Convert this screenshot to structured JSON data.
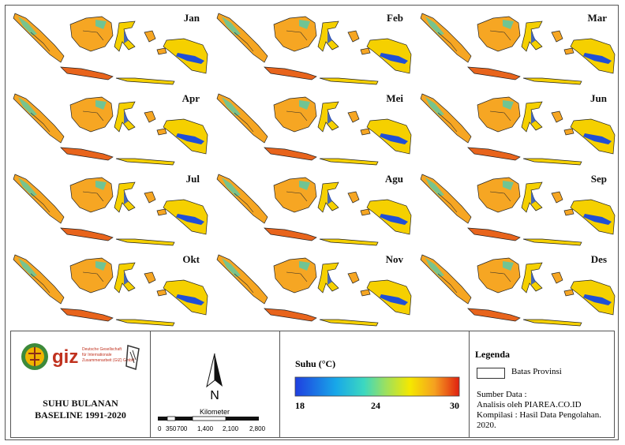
{
  "months": [
    "Jan",
    "Feb",
    "Mar",
    "Apr",
    "Mei",
    "Jun",
    "Jul",
    "Agu",
    "Sep",
    "Okt",
    "Nov",
    "Des"
  ],
  "title": {
    "line1": "SUHU BULANAN",
    "line2": "BASELINE 1991-2020"
  },
  "logo": {
    "brand": "giz",
    "sub1": "Deutsche Gesellschaft",
    "sub2": "für Internationale",
    "sub3": "Zusammenarbeit (GIZ) GmbH"
  },
  "north": "N",
  "scalebar": {
    "unit": "Kilometer",
    "ticks": [
      "0",
      "350",
      "700",
      "1,400",
      "2,100",
      "2,800"
    ]
  },
  "colorbar": {
    "title": "Suhu (°C)",
    "min": "18",
    "mid": "24",
    "max": "30"
  },
  "legend": {
    "title": "Legenda",
    "boundary": "Batas Provinsi"
  },
  "source": {
    "line1": "Sumber Data :",
    "line2": "Analisis oleh PIAREA.CO.ID",
    "line3": "Kompilasi : Hasil Data Pengolahan.",
    "line4": "2020."
  },
  "colors": {
    "frame": "#555555",
    "warm": "#f6a623",
    "mid": "#f5d000",
    "cool": "#62c8a0",
    "cold": "#1f4fd6",
    "hot": "#e8641c"
  }
}
